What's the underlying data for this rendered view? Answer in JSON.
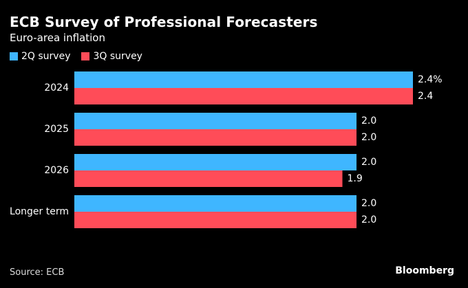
{
  "chart_data": {
    "type": "bar",
    "orientation": "horizontal",
    "title": "ECB Survey of Professional Forecasters",
    "subtitle": "Euro-area inflation",
    "categories": [
      "2024",
      "2025",
      "2026",
      "Longer term"
    ],
    "series": [
      {
        "name": "2Q survey",
        "color": "#3fb6ff",
        "values": [
          2.4,
          2.0,
          2.0,
          2.0
        ],
        "labels": [
          "2.4%",
          "2.0",
          "2.0",
          "2.0"
        ]
      },
      {
        "name": "3Q survey",
        "color": "#ff4c58",
        "values": [
          2.4,
          2.0,
          1.9,
          2.0
        ],
        "labels": [
          "2.4",
          "2.0",
          "1.9",
          "2.0"
        ]
      }
    ],
    "xlim": [
      0,
      2.4
    ],
    "grid": false,
    "legend": "top-left"
  },
  "footer": {
    "source": "Source: ECB",
    "brand": "Bloomberg"
  }
}
